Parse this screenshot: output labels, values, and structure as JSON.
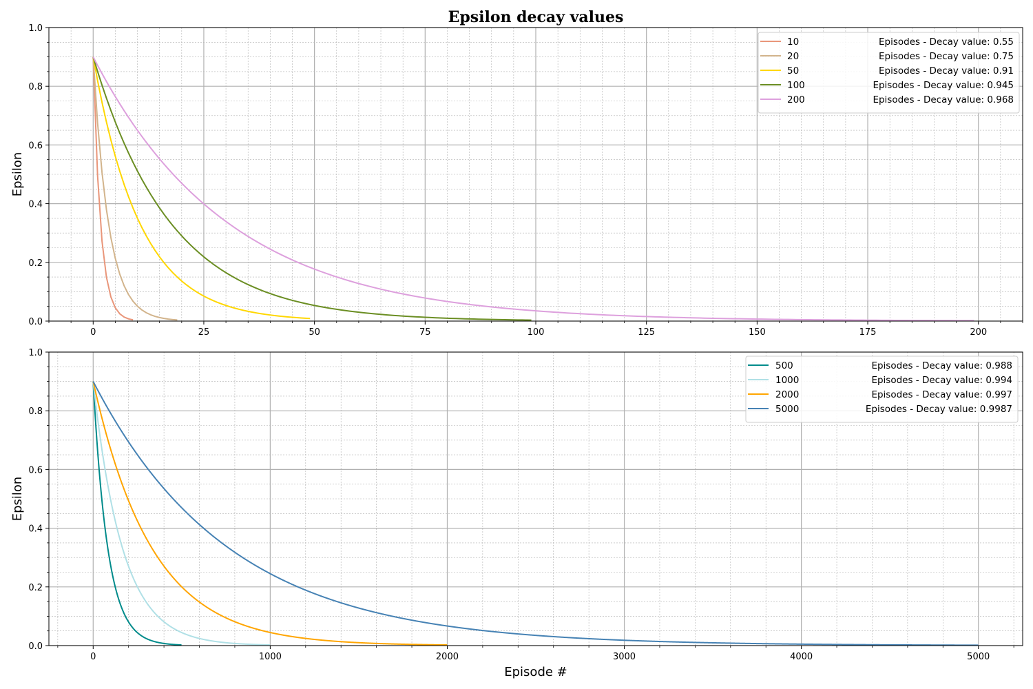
{
  "figure": {
    "title": "Epsilon decay values"
  },
  "chart_data": [
    {
      "type": "line",
      "title": "Epsilon decay values",
      "xlabel": "",
      "ylabel": "Epsilon",
      "xlim": [
        -10,
        210
      ],
      "ylim": [
        0,
        1.0
      ],
      "x_ticks": [
        0,
        25,
        50,
        75,
        100,
        125,
        150,
        175,
        200
      ],
      "y_ticks": [
        0.0,
        0.2,
        0.4,
        0.6,
        0.8,
        1.0
      ],
      "grid": true,
      "minor_grid": true,
      "legend_position": "upper right",
      "start_value": 0.9,
      "series": [
        {
          "name": "10",
          "legend_suffix": "Episodes - Decay value: 0.55",
          "episodes": 10,
          "decay": 0.55,
          "color": "#E9967A"
        },
        {
          "name": "20",
          "legend_suffix": "Episodes - Decay value: 0.75",
          "episodes": 20,
          "decay": 0.75,
          "color": "#D2B48C"
        },
        {
          "name": "50",
          "legend_suffix": "Episodes - Decay value: 0.91",
          "episodes": 50,
          "decay": 0.91,
          "color": "#FFD700"
        },
        {
          "name": "100",
          "legend_suffix": "Episodes - Decay value: 0.945",
          "episodes": 100,
          "decay": 0.945,
          "color": "#6B8E23"
        },
        {
          "name": "200",
          "legend_suffix": "Episodes - Decay value: 0.968",
          "episodes": 200,
          "decay": 0.968,
          "color": "#DDA0DD"
        }
      ]
    },
    {
      "type": "line",
      "title": "",
      "xlabel": "Episode #",
      "ylabel": "Epsilon",
      "xlim": [
        -250,
        5250
      ],
      "ylim": [
        0,
        1.0
      ],
      "x_ticks": [
        0,
        1000,
        2000,
        3000,
        4000,
        5000
      ],
      "y_ticks": [
        0.0,
        0.2,
        0.4,
        0.6,
        0.8,
        1.0
      ],
      "grid": true,
      "minor_grid": true,
      "legend_position": "upper right",
      "start_value": 0.9,
      "series": [
        {
          "name": "500",
          "legend_suffix": "Episodes - Decay value: 0.988",
          "episodes": 500,
          "decay": 0.988,
          "color": "#008B8B"
        },
        {
          "name": "1000",
          "legend_suffix": "Episodes - Decay value: 0.994",
          "episodes": 1000,
          "decay": 0.994,
          "color": "#B0E0E6"
        },
        {
          "name": "2000",
          "legend_suffix": "Episodes - Decay value: 0.997",
          "episodes": 2000,
          "decay": 0.997,
          "color": "#FFA500"
        },
        {
          "name": "5000",
          "legend_suffix": "Episodes - Decay value: 0.9987",
          "episodes": 5000,
          "decay": 0.9987,
          "color": "#4682B4"
        }
      ]
    }
  ]
}
